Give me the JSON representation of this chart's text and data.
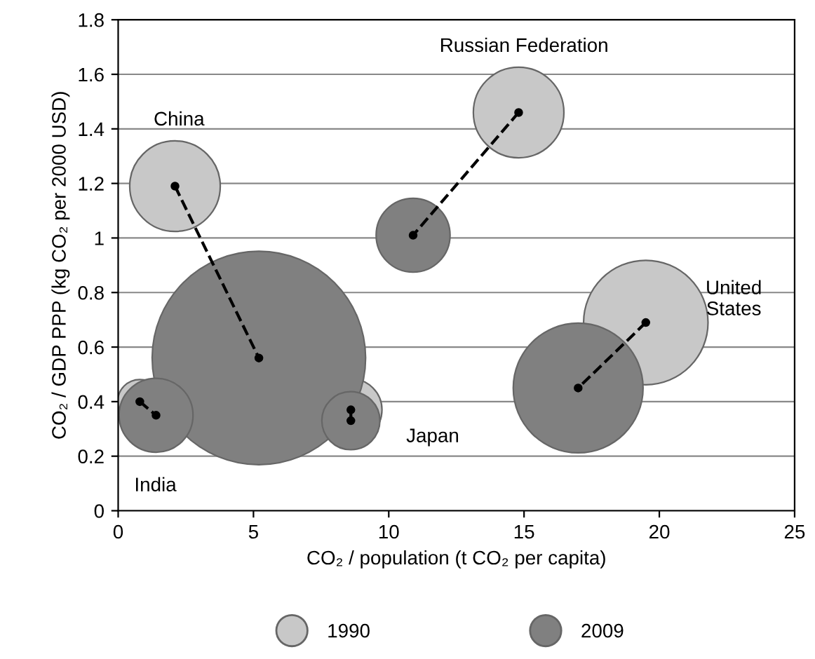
{
  "chart_data": {
    "type": "bubble",
    "xlabel": "CO₂ / population (t CO₂ per capita)",
    "ylabel": "CO₂ / GDP PPP (kg CO₂ per 2000 USD)",
    "xlim": [
      0,
      25
    ],
    "xticks": [
      0,
      5,
      10,
      15,
      20,
      25
    ],
    "ylim": [
      0,
      1.8
    ],
    "yticks": [
      0,
      0.2,
      0.4,
      0.6,
      0.8,
      1,
      1.2,
      1.4,
      1.6,
      1.8
    ],
    "grid": "y",
    "legend": "bottom",
    "series": [
      {
        "name": "1990",
        "color": "#c8c8c8",
        "x": [
          2.1,
          14.8,
          19.5,
          0.8,
          8.6
        ],
        "values": [
          1.19,
          1.46,
          0.69,
          0.4,
          0.37
        ],
        "sizes": [
          0.18,
          0.18,
          0.34,
          0.043,
          0.085
        ]
      },
      {
        "name": "2009",
        "color": "#808080",
        "x": [
          5.2,
          10.9,
          17.0,
          1.4,
          8.6
        ],
        "values": [
          0.56,
          1.01,
          0.45,
          0.35,
          0.33
        ],
        "sizes": [
          1,
          0.12,
          0.37,
          0.12,
          0.074
        ]
      },
      {
        "type": "line",
        "color": "#000000",
        "marker": "circle",
        "line_style": "dashed",
        "x": [
          2.1,
          5.2
        ],
        "values": [
          1.19,
          0.56
        ]
      },
      {
        "type": "line",
        "color": "#000000",
        "marker": "circle",
        "line_style": "dashed",
        "x": [
          14.8,
          10.9
        ],
        "values": [
          1.46,
          1.01
        ]
      },
      {
        "type": "line",
        "color": "#000000",
        "marker": "circle",
        "line_style": "dashed",
        "x": [
          19.5,
          17.0
        ],
        "values": [
          0.69,
          0.45
        ]
      },
      {
        "type": "line",
        "color": "#000000",
        "marker": "circle",
        "line_style": "dashed",
        "x": [
          0.8,
          1.4
        ],
        "values": [
          0.4,
          0.35
        ]
      },
      {
        "type": "line",
        "color": "#000000",
        "marker": "circle",
        "line_style": "dashed",
        "x": [
          8.6,
          8.6
        ],
        "values": [
          0.37,
          0.33
        ]
      }
    ],
    "annotations": [
      "China",
      "Russian Federation",
      "United\nStates",
      "Japan",
      "India"
    ]
  }
}
